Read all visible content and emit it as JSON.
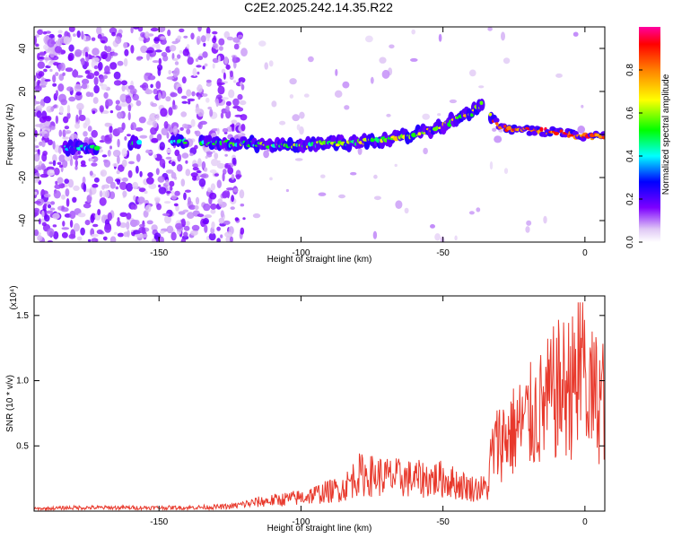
{
  "title": "C2E2.2025.242.14.35.R22",
  "chart_data": [
    {
      "type": "heatmap",
      "title": "C2E2.2025.242.14.35.R22",
      "xlabel": "Height of straight line (km)",
      "ylabel": "Frequency (Hz)",
      "xlim": [
        -194,
        7
      ],
      "ylim": [
        -50,
        50
      ],
      "xticks": [
        -150,
        -100,
        -50,
        0
      ],
      "xtick_labels": [
        "-150",
        "-100",
        "-50",
        "0"
      ],
      "yticks": [
        -40,
        -20,
        0,
        20,
        40
      ],
      "ytick_labels": [
        "-40",
        "-20",
        "0",
        "20",
        "40"
      ],
      "ridge": {
        "x": [
          -180,
          -165,
          -155,
          -140,
          -130,
          -120,
          -110,
          -100,
          -90,
          -80,
          -70,
          -60,
          -50,
          -45,
          -40,
          -36,
          -30,
          -20,
          -10,
          0,
          7
        ],
        "y": [
          -6,
          -6,
          -3,
          -4,
          -4,
          -4,
          -5,
          -5,
          -4,
          -4,
          -2,
          0,
          4,
          8,
          10,
          14,
          3,
          2,
          1,
          -1,
          -1
        ]
      },
      "colorbar": {
        "label": "Normalized spectral amplitude",
        "range": [
          0,
          1
        ],
        "ticks": [
          0.0,
          0.2,
          0.4,
          0.6,
          0.8
        ],
        "tick_labels": [
          "0.0",
          "0.2",
          "0.4",
          "0.6",
          "0.8"
        ]
      }
    },
    {
      "type": "line",
      "title": "",
      "xlabel": "Height of straight line (km)",
      "ylabel": "SNR (10 * v/v)",
      "scale_label": "(x10⁴)",
      "xlim": [
        -194,
        7
      ],
      "ylim": [
        0,
        1.65
      ],
      "xticks": [
        -150,
        -100,
        -50,
        0
      ],
      "xtick_labels": [
        "-150",
        "-100",
        "-50",
        "0"
      ],
      "yticks": [
        0.5,
        1.0,
        1.5
      ],
      "ytick_labels": [
        "0.5",
        "1.0",
        "1.5"
      ],
      "series": [
        {
          "name": "SNR",
          "color": "#e8392c",
          "x": [
            -194,
            -180,
            -160,
            -140,
            -125,
            -115,
            -100,
            -85,
            -80,
            -70,
            -60,
            -50,
            -40,
            -34,
            -33,
            -30,
            -25,
            -20,
            -15,
            -10,
            -5,
            0,
            4,
            7
          ],
          "y": [
            0.02,
            0.03,
            0.03,
            0.03,
            0.04,
            0.08,
            0.12,
            0.2,
            0.32,
            0.3,
            0.28,
            0.28,
            0.2,
            0.2,
            0.5,
            0.62,
            0.7,
            0.8,
            0.9,
            1.05,
            1.1,
            1.05,
            1.0,
            1.0
          ]
        }
      ]
    }
  ]
}
